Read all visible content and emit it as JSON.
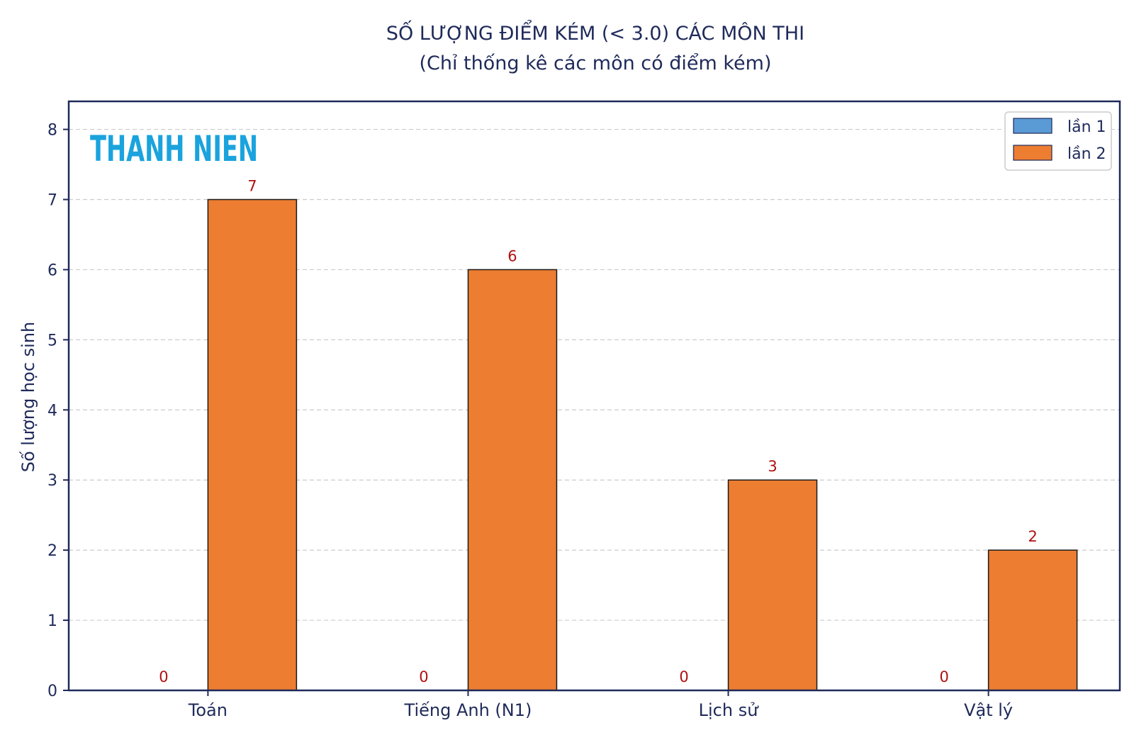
{
  "chart_data": {
    "type": "bar",
    "title": "SỐ LƯỢNG ĐIỂM KÉM (< 3.0) CÁC MÔN THI",
    "subtitle": "(Chỉ thống kê các môn có điểm kém)",
    "xlabel": "",
    "ylabel": "Số lượng học sinh",
    "categories": [
      "Toán",
      "Tiếng Anh (N1)",
      "Lịch sử",
      "Vật lý"
    ],
    "series": [
      {
        "name": "lần 1",
        "values": [
          0,
          0,
          0,
          0
        ],
        "color": "#5b9bd5"
      },
      {
        "name": "lần 2",
        "values": [
          7,
          6,
          3,
          2
        ],
        "color": "#ed7d31"
      }
    ],
    "ylim": [
      0,
      8.4
    ],
    "yticks": [
      0,
      1,
      2,
      3,
      4,
      5,
      6,
      7,
      8
    ],
    "grid": true,
    "legend_position": "top-right"
  },
  "watermark": {
    "text": "THANH NIEN",
    "color": "#1aa3dd"
  },
  "colors": {
    "axis": "#1f2a5a",
    "grid": "#cccccc",
    "data_label": "#b01010"
  }
}
